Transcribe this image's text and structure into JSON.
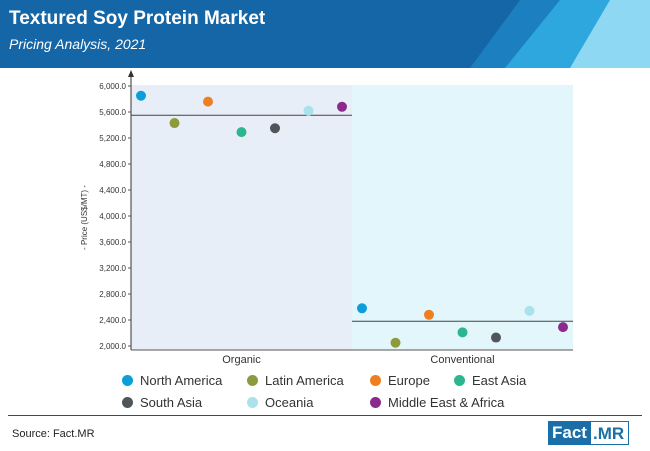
{
  "header": {
    "title": "Textured Soy Protein Market",
    "subtitle": "Pricing Analysis, 2021"
  },
  "colors": {
    "header_dark": "#1466a6",
    "header_mid": "#2ea6de",
    "header_light": "#8fd8f3",
    "organic_bg": "#e8eef8",
    "conventional_bg": "#e3f6fb"
  },
  "chart_data": {
    "type": "scatter",
    "ylabel": "- Price (US$/MT) -",
    "ylim": [
      2000,
      6000
    ],
    "yticks": [
      "2,000.0",
      "2,400.0",
      "2,800.0",
      "3,200.0",
      "3,600.0",
      "4,000.0",
      "4,400.0",
      "4,800.0",
      "5,200.0",
      "5,600.0",
      "6,000.0"
    ],
    "categories": [
      "Organic",
      "Conventional"
    ],
    "averages": [
      5550,
      2380
    ],
    "series": [
      {
        "name": "North America",
        "color": "#0b9ed8",
        "values": [
          5850,
          2580
        ]
      },
      {
        "name": "Latin America",
        "color": "#8c9a3b",
        "values": [
          5430,
          2050
        ]
      },
      {
        "name": "Europe",
        "color": "#ef7d22",
        "values": [
          5760,
          2480
        ]
      },
      {
        "name": "East Asia",
        "color": "#2cb58f",
        "values": [
          5290,
          2210
        ]
      },
      {
        "name": "South Asia",
        "color": "#4f5559",
        "values": [
          5350,
          2130
        ]
      },
      {
        "name": "Oceania",
        "color": "#a9e2ea",
        "values": [
          5620,
          2540
        ]
      },
      {
        "name": "Middle East & Africa",
        "color": "#8a2b8c",
        "values": [
          5680,
          2290
        ]
      }
    ]
  },
  "footer": {
    "source": "Source: Fact.MR",
    "logo_left": "Fact",
    "logo_right": ".MR"
  }
}
